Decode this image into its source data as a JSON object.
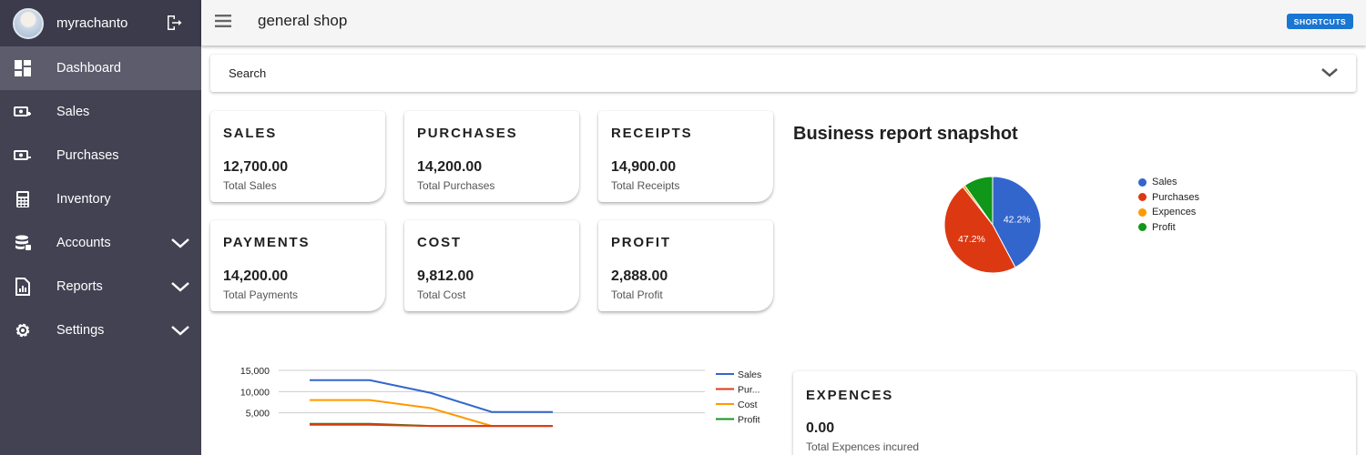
{
  "sidebar": {
    "username": "myrachanto",
    "items": [
      {
        "label": "Dashboard",
        "icon": "dashboard-icon"
      },
      {
        "label": "Sales",
        "icon": "sales-icon"
      },
      {
        "label": "Purchases",
        "icon": "purchases-icon"
      },
      {
        "label": "Inventory",
        "icon": "calculator-icon"
      },
      {
        "label": "Accounts",
        "icon": "database-icon"
      },
      {
        "label": "Reports",
        "icon": "report-icon"
      },
      {
        "label": "Settings",
        "icon": "gear-icon"
      }
    ]
  },
  "topbar": {
    "title": "general shop",
    "shortcuts_label": "SHORTCUTS"
  },
  "search": {
    "label": "Search"
  },
  "cards": [
    {
      "title": "SALES",
      "value": "12,700.00",
      "subtitle": "Total Sales"
    },
    {
      "title": "PURCHASES",
      "value": "14,200.00",
      "subtitle": "Total Purchases"
    },
    {
      "title": "RECEIPTS",
      "value": "14,900.00",
      "subtitle": "Total Receipts"
    },
    {
      "title": "PAYMENTS",
      "value": "14,200.00",
      "subtitle": "Total Payments"
    },
    {
      "title": "COST",
      "value": "9,812.00",
      "subtitle": "Total Cost"
    },
    {
      "title": "PROFIT",
      "value": "2,888.00",
      "subtitle": "Total Profit"
    }
  ],
  "report": {
    "title": "Business report snapshot"
  },
  "expences": {
    "title": "EXPENCES",
    "value": "0.00",
    "subtitle": "Total Expences incured"
  },
  "colors": {
    "sidebar_bg": "#424253",
    "accent": "#1976d2",
    "sales": "#3366cc",
    "purchases": "#dc3912",
    "expences": "#ff9900",
    "profit": "#109618"
  },
  "chart_data": [
    {
      "type": "pie",
      "title": "",
      "slices": [
        {
          "label": "Sales",
          "value": 42.2,
          "color": "#3366cc",
          "data_label": "42.2%"
        },
        {
          "label": "Purchases",
          "value": 47.2,
          "color": "#dc3912",
          "data_label": "47.2%"
        },
        {
          "label": "Expences",
          "value": 0.8,
          "color": "#ff9900",
          "data_label": ""
        },
        {
          "label": "Profit",
          "value": 9.8,
          "color": "#109618",
          "data_label": ""
        }
      ],
      "legend": "right"
    },
    {
      "type": "line",
      "title": "",
      "x": [
        1,
        2,
        3,
        4,
        5
      ],
      "series": [
        {
          "name": "Sales",
          "legend_label": "Sales",
          "color": "#3366cc",
          "values": [
            12700,
            12700,
            9700,
            5200,
            5200
          ]
        },
        {
          "name": "Purchases",
          "legend_label": "Pur...",
          "color": "#dc3912",
          "values": [
            2200,
            2200,
            1900,
            1900,
            1900
          ]
        },
        {
          "name": "Cost",
          "legend_label": "Cost",
          "color": "#ff9900",
          "values": [
            8000,
            8000,
            6100,
            1900,
            1900
          ]
        },
        {
          "name": "Profit",
          "legend_label": "Profit",
          "color": "#109618",
          "values": [
            2400,
            2400,
            1900,
            1900,
            1900
          ]
        }
      ],
      "y_ticks": [
        {
          "value": 15000,
          "label": "15,000"
        },
        {
          "value": 10000,
          "label": "10,000"
        },
        {
          "value": 5000,
          "label": "5,000"
        }
      ],
      "grid": true,
      "legend": "right"
    }
  ]
}
